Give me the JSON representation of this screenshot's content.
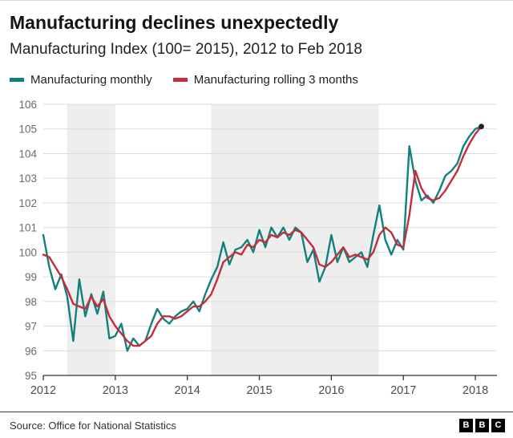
{
  "footer": {
    "source": "Source: Office for National Statistics",
    "logo_letters": [
      "B",
      "B",
      "C"
    ]
  },
  "chart_data": {
    "type": "line",
    "title": "Manufacturing declines unexpectedly",
    "subtitle": "Manufacturing Index (100= 2015), 2012 to Feb 2018",
    "xlabel": "",
    "ylabel": "",
    "x_start_year": 2012,
    "x_step_months": 1,
    "xlim": [
      2012,
      2018.3
    ],
    "ylim": [
      95,
      106
    ],
    "y_ticks": [
      95,
      96,
      97,
      98,
      99,
      100,
      101,
      102,
      103,
      104,
      105,
      106
    ],
    "x_ticks": [
      2012,
      2013,
      2014,
      2015,
      2016,
      2017,
      2018
    ],
    "grid": "horizontal",
    "legend_position": "top",
    "band_color": "#eeeeee",
    "shaded_periods": [
      {
        "from": 2012.33,
        "to": 2013.0
      },
      {
        "from": 2014.33,
        "to": 2016.66
      }
    ],
    "series": [
      {
        "name": "Manufacturing monthly",
        "color": "#12807c",
        "values": [
          100.7,
          99.4,
          98.5,
          99.1,
          98.2,
          96.4,
          98.9,
          97.4,
          98.3,
          97.5,
          98.4,
          96.5,
          96.6,
          97.1,
          96.0,
          96.5,
          96.2,
          96.4,
          97.1,
          97.7,
          97.3,
          97.1,
          97.4,
          97.6,
          97.7,
          98.0,
          97.6,
          98.3,
          98.9,
          99.4,
          100.4,
          99.5,
          100.1,
          100.2,
          100.5,
          100.0,
          100.9,
          100.2,
          101.0,
          100.6,
          101.0,
          100.5,
          101.0,
          100.8,
          99.6,
          100.1,
          98.8,
          99.4,
          100.7,
          99.6,
          100.2,
          99.6,
          99.8,
          100.0,
          99.4,
          100.7,
          101.9,
          100.5,
          99.9,
          100.5,
          100.1,
          104.3,
          102.9,
          102.1,
          102.3,
          102.0,
          102.5,
          103.1,
          103.3,
          103.6,
          104.3,
          104.7,
          105.0,
          105.1
        ]
      },
      {
        "name": "Manufacturing rolling 3 months",
        "color": "#c42e3c",
        "values": [
          99.9,
          99.8,
          99.4,
          99.0,
          98.5,
          97.9,
          97.8,
          97.7,
          98.2,
          97.8,
          98.1,
          97.4,
          97.0,
          96.7,
          96.4,
          96.2,
          96.2,
          96.4,
          96.6,
          97.1,
          97.4,
          97.4,
          97.3,
          97.4,
          97.6,
          97.8,
          97.8,
          98.0,
          98.3,
          98.9,
          99.6,
          99.8,
          100.0,
          99.9,
          100.3,
          100.2,
          100.5,
          100.4,
          100.7,
          100.6,
          100.8,
          100.7,
          100.9,
          100.8,
          100.5,
          100.2,
          99.5,
          99.4,
          99.6,
          99.9,
          100.2,
          99.8,
          99.9,
          99.8,
          99.7,
          100.0,
          100.7,
          101.0,
          100.8,
          100.3,
          100.2,
          101.5,
          103.3,
          102.6,
          102.2,
          102.1,
          102.2,
          102.5,
          102.9,
          103.3,
          103.9,
          104.4,
          104.8,
          105.1
        ]
      }
    ]
  }
}
